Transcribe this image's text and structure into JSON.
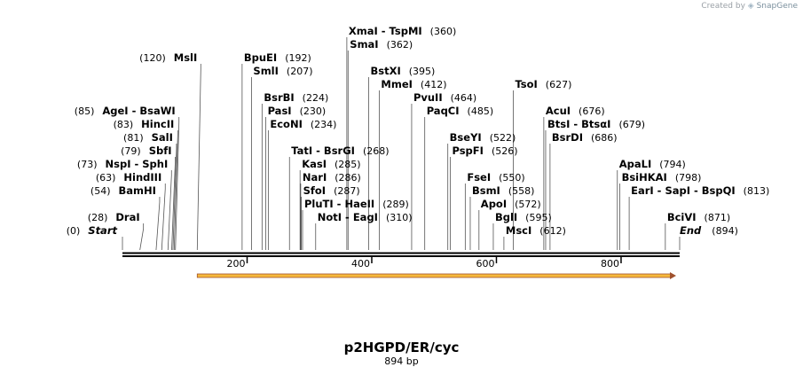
{
  "credit": {
    "prefix": "Created by",
    "brand": "SnapGene"
  },
  "plasmid": {
    "name": "p2HGPD/ER/cyc",
    "length_label": "894 bp",
    "length": 894
  },
  "colors": {
    "feature_fill": "#f6b93b",
    "feature_stroke": "#a0522d",
    "backbone": "#000000",
    "leader": "#555555"
  },
  "feature": {
    "start": 120,
    "end": 894,
    "direction": "forward"
  },
  "ends": {
    "start": {
      "label": "Start",
      "pos": 0,
      "pos_text": "(0)"
    },
    "end": {
      "label": "End",
      "pos": 894,
      "pos_text": "(894)"
    }
  },
  "ruler_ticks": [
    {
      "value": 200,
      "label": "200"
    },
    {
      "value": 400,
      "label": "400"
    },
    {
      "value": 600,
      "label": "600"
    },
    {
      "value": 800,
      "label": "800"
    }
  ],
  "sites": [
    {
      "id": "drai",
      "label": "DraI",
      "pos": 28,
      "pos_text": "(28)",
      "side": "left",
      "row": 1
    },
    {
      "id": "bamhi",
      "label": "BamHI",
      "pos": 54,
      "pos_text": "(54)",
      "side": "left",
      "row": 3
    },
    {
      "id": "hindiii",
      "label": "HindIII",
      "pos": 63,
      "pos_text": "(63)",
      "side": "left",
      "row": 4
    },
    {
      "id": "nspi-sphi",
      "label": "NspI  - SphI",
      "pos": 73,
      "pos_text": "(73)",
      "side": "left",
      "row": 5
    },
    {
      "id": "sbfi",
      "label": "SbfI",
      "pos": 79,
      "pos_text": "(79)",
      "side": "left",
      "row": 6
    },
    {
      "id": "sali",
      "label": "SalI",
      "pos": 81,
      "pos_text": "(81)",
      "side": "left",
      "row": 7
    },
    {
      "id": "hincii",
      "label": "HincII",
      "pos": 83,
      "pos_text": "(83)",
      "side": "left",
      "row": 8
    },
    {
      "id": "agei-bsawi",
      "label": "AgeI  - BsaWI",
      "pos": 85,
      "pos_text": "(85)",
      "side": "left",
      "row": 9
    },
    {
      "id": "msli",
      "label": "MslI",
      "pos": 120,
      "pos_text": "(120)",
      "side": "left",
      "row": 13
    },
    {
      "id": "bpuei",
      "label": "BpuEI",
      "pos": 192,
      "pos_text": "(192)",
      "side": "right",
      "row": 13
    },
    {
      "id": "smli",
      "label": "SmlI",
      "pos": 207,
      "pos_text": "(207)",
      "side": "right",
      "row": 12
    },
    {
      "id": "bsrbi",
      "label": "BsrBI",
      "pos": 224,
      "pos_text": "(224)",
      "side": "right",
      "row": 10
    },
    {
      "id": "pasi",
      "label": "PasI",
      "pos": 230,
      "pos_text": "(230)",
      "side": "right",
      "row": 9
    },
    {
      "id": "econi",
      "label": "EcoNI",
      "pos": 234,
      "pos_text": "(234)",
      "side": "right",
      "row": 8
    },
    {
      "id": "tati-bsrgi",
      "label": "TatI  - BsrGI",
      "pos": 268,
      "pos_text": "(268)",
      "side": "right",
      "row": 6
    },
    {
      "id": "kasi",
      "label": "KasI",
      "pos": 285,
      "pos_text": "(285)",
      "side": "right",
      "row": 5
    },
    {
      "id": "nari",
      "label": "NarI",
      "pos": 286,
      "pos_text": "(286)",
      "side": "right",
      "row": 4
    },
    {
      "id": "sfoi",
      "label": "SfoI",
      "pos": 287,
      "pos_text": "(287)",
      "side": "right",
      "row": 3
    },
    {
      "id": "pluti-haeii",
      "label": "PluTI  - HaeII",
      "pos": 289,
      "pos_text": "(289)",
      "side": "right",
      "row": 2
    },
    {
      "id": "noti-eagi",
      "label": "NotI  - EagI",
      "pos": 310,
      "pos_text": "(310)",
      "side": "right",
      "row": 1
    },
    {
      "id": "xmai-tspmi",
      "label": "XmaI  - TspMI",
      "pos": 360,
      "pos_text": "(360)",
      "side": "right",
      "row": 15
    },
    {
      "id": "smai",
      "label": "SmaI",
      "pos": 362,
      "pos_text": "(362)",
      "side": "right",
      "row": 14
    },
    {
      "id": "bstxi",
      "label": "BstXI",
      "pos": 395,
      "pos_text": "(395)",
      "side": "right",
      "row": 12
    },
    {
      "id": "mmei",
      "label": "MmeI",
      "pos": 412,
      "pos_text": "(412)",
      "side": "right",
      "row": 11
    },
    {
      "id": "pvuii",
      "label": "PvuII",
      "pos": 464,
      "pos_text": "(464)",
      "side": "right",
      "row": 10
    },
    {
      "id": "paqci",
      "label": "PaqCI",
      "pos": 485,
      "pos_text": "(485)",
      "side": "right",
      "row": 9
    },
    {
      "id": "bseyi",
      "label": "BseYI",
      "pos": 522,
      "pos_text": "(522)",
      "side": "right",
      "row": 7
    },
    {
      "id": "pspfi",
      "label": "PspFI",
      "pos": 526,
      "pos_text": "(526)",
      "side": "right",
      "row": 6
    },
    {
      "id": "fsei",
      "label": "FseI",
      "pos": 550,
      "pos_text": "(550)",
      "side": "right",
      "row": 4
    },
    {
      "id": "bsmi",
      "label": "BsmI",
      "pos": 558,
      "pos_text": "(558)",
      "side": "right",
      "row": 3
    },
    {
      "id": "apoi",
      "label": "ApoI",
      "pos": 572,
      "pos_text": "(572)",
      "side": "right",
      "row": 2
    },
    {
      "id": "bgli",
      "label": "BglI",
      "pos": 595,
      "pos_text": "(595)",
      "side": "right",
      "row": 1
    },
    {
      "id": "msci",
      "label": "MscI",
      "pos": 612,
      "pos_text": "(612)",
      "side": "right",
      "row": 0
    },
    {
      "id": "tsoi",
      "label": "TsoI",
      "pos": 627,
      "pos_text": "(627)",
      "side": "right",
      "row": 11
    },
    {
      "id": "acui",
      "label": "AcuI",
      "pos": 676,
      "pos_text": "(676)",
      "side": "right",
      "row": 9
    },
    {
      "id": "btsi-btsai",
      "label": "BtsI  - BtsαI",
      "pos": 679,
      "pos_text": "(679)",
      "side": "right",
      "row": 8
    },
    {
      "id": "bsrdi",
      "label": "BsrDI",
      "pos": 686,
      "pos_text": "(686)",
      "side": "right",
      "row": 7
    },
    {
      "id": "apali",
      "label": "ApaLI",
      "pos": 794,
      "pos_text": "(794)",
      "side": "right",
      "row": 5
    },
    {
      "id": "bsihkai",
      "label": "BsiHKAI",
      "pos": 798,
      "pos_text": "(798)",
      "side": "right",
      "row": 4
    },
    {
      "id": "eari-sapi-bspqi",
      "label": "EarI  - SapI  - BspQI",
      "pos": 813,
      "pos_text": "(813)",
      "side": "right",
      "row": 3
    },
    {
      "id": "bcivi",
      "label": "BciVI",
      "pos": 871,
      "pos_text": "(871)",
      "side": "right",
      "row": 1
    }
  ]
}
